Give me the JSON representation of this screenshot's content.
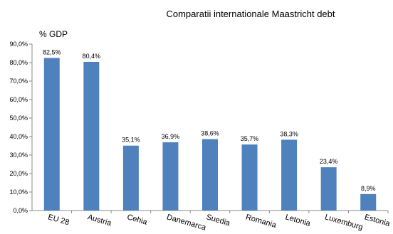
{
  "chart_data": {
    "type": "bar",
    "title": "Comparatii internationale Maastricht debt",
    "ylabel": "% GDP",
    "xlabel": "",
    "categories": [
      "EU 28",
      "Austria",
      "Cehia",
      "Danemarca",
      "Suedia",
      "Romania",
      "Letonia",
      "Luxemburg",
      "Estonia"
    ],
    "values": [
      82.5,
      80.4,
      35.1,
      36.9,
      38.6,
      35.7,
      38.3,
      23.4,
      8.9
    ],
    "value_labels": [
      "82,5%",
      "80,4%",
      "35,1%",
      "36,9%",
      "38,6%",
      "35,7%",
      "38,3%",
      "23,4%",
      "8,9%"
    ],
    "ylim": [
      0,
      90
    ],
    "yticks": [
      "0,0%",
      "10,0%",
      "20,0%",
      "30,0%",
      "40,0%",
      "50,0%",
      "60,0%",
      "70,0%",
      "80,0%",
      "90,0%"
    ],
    "bar_color": "#4f81bd",
    "grid": false,
    "legend": "none"
  }
}
